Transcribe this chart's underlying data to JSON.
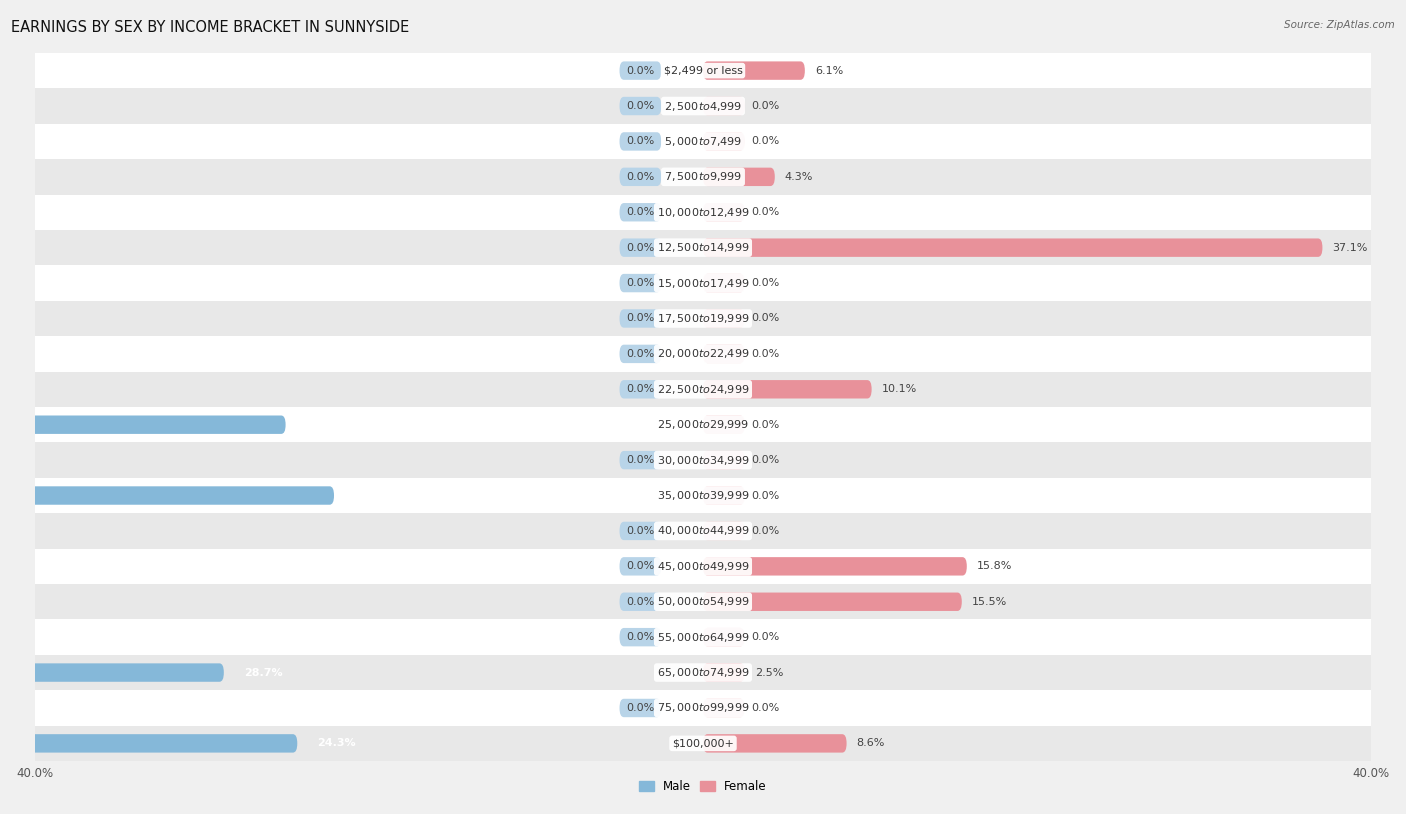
{
  "title": "EARNINGS BY SEX BY INCOME BRACKET IN SUNNYSIDE",
  "source": "Source: ZipAtlas.com",
  "categories": [
    "$2,499 or less",
    "$2,500 to $4,999",
    "$5,000 to $7,499",
    "$7,500 to $9,999",
    "$10,000 to $12,499",
    "$12,500 to $14,999",
    "$15,000 to $17,499",
    "$17,500 to $19,999",
    "$20,000 to $22,499",
    "$22,500 to $24,999",
    "$25,000 to $29,999",
    "$30,000 to $34,999",
    "$35,000 to $39,999",
    "$40,000 to $44,999",
    "$45,000 to $49,999",
    "$50,000 to $54,999",
    "$55,000 to $64,999",
    "$65,000 to $74,999",
    "$75,000 to $99,999",
    "$100,000+"
  ],
  "male": [
    0.0,
    0.0,
    0.0,
    0.0,
    0.0,
    0.0,
    0.0,
    0.0,
    0.0,
    0.0,
    25.0,
    0.0,
    22.1,
    0.0,
    0.0,
    0.0,
    0.0,
    28.7,
    0.0,
    24.3
  ],
  "female": [
    6.1,
    0.0,
    0.0,
    4.3,
    0.0,
    37.1,
    0.0,
    0.0,
    0.0,
    10.1,
    0.0,
    0.0,
    0.0,
    0.0,
    15.8,
    15.5,
    0.0,
    2.5,
    0.0,
    8.6
  ],
  "male_color": "#85b8d9",
  "female_color": "#e8919a",
  "male_zero_color": "#b8d4e8",
  "female_zero_color": "#f2bec3",
  "male_label": "Male",
  "female_label": "Female",
  "xlim": 40.0,
  "zero_stub": 2.5,
  "background_color": "#f0f0f0",
  "row_bg_even": "#ffffff",
  "row_bg_odd": "#e8e8e8",
  "title_fontsize": 10.5,
  "label_fontsize": 8.0,
  "value_fontsize": 8.0,
  "axis_fontsize": 8.5,
  "source_fontsize": 7.5,
  "bar_height": 0.52,
  "value_label_inside_color": "#ffffff",
  "value_label_outside_color": "#444444"
}
